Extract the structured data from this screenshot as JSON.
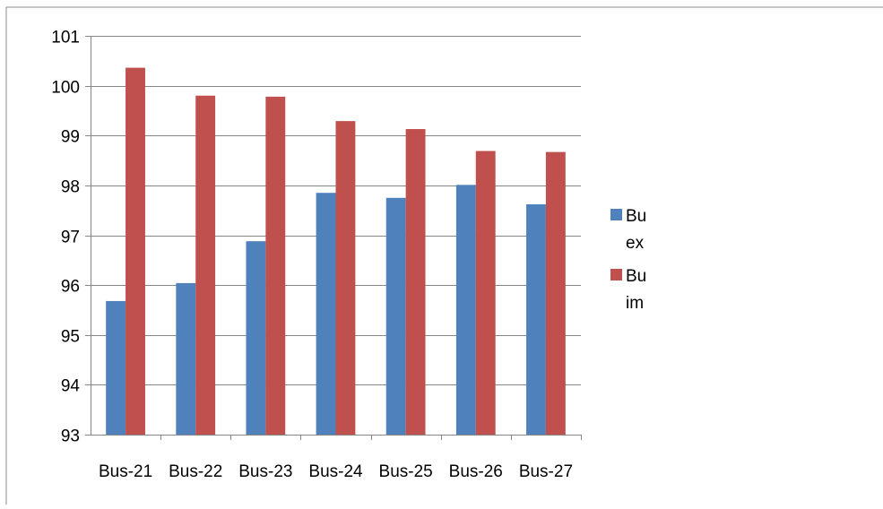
{
  "chart_data": {
    "type": "bar",
    "categories": [
      "Bus-21",
      "Bus-22",
      "Bus-23",
      "Bus-24",
      "Bus-25",
      "Bus-26",
      "Bus-27"
    ],
    "series": [
      {
        "name": "Bu ex",
        "color": "#4F81BD",
        "values": [
          95.68,
          96.04,
          96.88,
          97.85,
          97.75,
          98.01,
          97.62
        ]
      },
      {
        "name": "Bu im",
        "color": "#C0504D",
        "values": [
          100.36,
          99.8,
          99.78,
          99.29,
          99.13,
          98.69,
          98.67
        ]
      }
    ],
    "ylim": [
      93,
      101
    ],
    "yticks": [
      93,
      94,
      95,
      96,
      97,
      98,
      99,
      100,
      101
    ],
    "legend_position": "right",
    "grid": true
  }
}
